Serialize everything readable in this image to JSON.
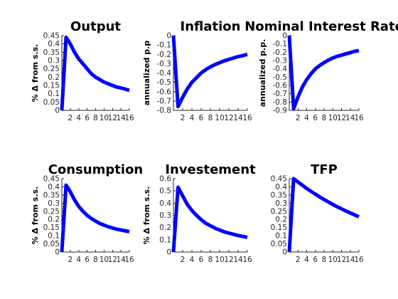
{
  "chart_data": [
    {
      "type": "line",
      "title": "Output",
      "ylabel": "% Δ from s.s.",
      "xlim": [
        0,
        16
      ],
      "ylim": [
        0,
        0.45
      ],
      "xticks": [
        "2",
        "4",
        "6",
        "8",
        "10",
        "12",
        "14",
        "16"
      ],
      "yticks": [
        "0",
        "0.05",
        "0.1",
        "0.15",
        "0.2",
        "0.25",
        "0.3",
        "0.35",
        "0.4",
        "0.45"
      ],
      "series": [
        {
          "color": "#0000ff",
          "x": [
            0,
            1,
            2,
            3,
            4,
            5,
            6,
            7,
            8,
            9,
            10,
            11,
            12,
            13,
            14,
            15,
            16
          ],
          "values": [
            0,
            0.44,
            0.4,
            0.35,
            0.31,
            0.28,
            0.25,
            0.22,
            0.2,
            0.185,
            0.17,
            0.16,
            0.15,
            0.14,
            0.135,
            0.128,
            0.12
          ]
        }
      ]
    },
    {
      "type": "line",
      "title": "Inflation",
      "ylabel": "annualized p.p",
      "xlim": [
        0,
        16
      ],
      "ylim": [
        -0.8,
        0
      ],
      "xticks": [
        "2",
        "4",
        "6",
        "8",
        "10",
        "12",
        "14",
        "16"
      ],
      "yticks": [
        "-0.8",
        "-0.7",
        "-0.6",
        "-0.5",
        "-0.4",
        "-0.3",
        "-0.2",
        "-0.1",
        "0"
      ],
      "series": [
        {
          "color": "#0000ff",
          "x": [
            0,
            1,
            2,
            3,
            4,
            5,
            6,
            7,
            8,
            9,
            10,
            11,
            12,
            13,
            14,
            15,
            16
          ],
          "values": [
            0,
            -0.76,
            -0.66,
            -0.57,
            -0.5,
            -0.45,
            -0.4,
            -0.365,
            -0.335,
            -0.31,
            -0.29,
            -0.27,
            -0.255,
            -0.24,
            -0.225,
            -0.215,
            -0.2
          ]
        }
      ]
    },
    {
      "type": "line",
      "title": "Nominal Interest Rate",
      "ylabel": "annualized p.p.",
      "xlim": [
        0,
        16
      ],
      "ylim": [
        -0.9,
        0
      ],
      "xticks": [
        "2",
        "4",
        "6",
        "8",
        "10",
        "12",
        "14",
        "16"
      ],
      "yticks": [
        "-0.9",
        "-0.8",
        "-0.7",
        "-0.6",
        "-0.5",
        "-0.4",
        "-0.3",
        "-0.2",
        "-0.1",
        "0"
      ],
      "series": [
        {
          "color": "#0000ff",
          "x": [
            0,
            1,
            2,
            3,
            4,
            5,
            6,
            7,
            8,
            9,
            10,
            11,
            12,
            13,
            14,
            15,
            16
          ],
          "values": [
            0,
            -0.88,
            -0.74,
            -0.62,
            -0.53,
            -0.46,
            -0.4,
            -0.36,
            -0.325,
            -0.295,
            -0.27,
            -0.25,
            -0.235,
            -0.22,
            -0.205,
            -0.19,
            -0.18
          ]
        }
      ]
    },
    {
      "type": "line",
      "title": "Consumption",
      "ylabel": "% Δ from s.s.",
      "xlim": [
        0,
        16
      ],
      "ylim": [
        0,
        0.45
      ],
      "xticks": [
        "2",
        "4",
        "6",
        "8",
        "10",
        "12",
        "14",
        "16"
      ],
      "yticks": [
        "0",
        "0.05",
        "0.1",
        "0.15",
        "0.2",
        "0.25",
        "0.3",
        "0.35",
        "0.4",
        "0.45"
      ],
      "series": [
        {
          "color": "#0000ff",
          "x": [
            0,
            1,
            2,
            3,
            4,
            5,
            6,
            7,
            8,
            9,
            10,
            11,
            12,
            13,
            14,
            15,
            16
          ],
          "values": [
            0,
            0.41,
            0.37,
            0.32,
            0.28,
            0.25,
            0.225,
            0.205,
            0.19,
            0.175,
            0.165,
            0.155,
            0.148,
            0.14,
            0.135,
            0.13,
            0.125
          ]
        }
      ]
    },
    {
      "type": "line",
      "title": "Investement",
      "ylabel": "% Δ from s.s.",
      "xlim": [
        0,
        16
      ],
      "ylim": [
        0,
        0.6
      ],
      "xticks": [
        "2",
        "4",
        "6",
        "8",
        "10",
        "12",
        "14",
        "16"
      ],
      "yticks": [
        "0",
        "0.1",
        "0.2",
        "0.3",
        "0.4",
        "0.5",
        "0.6"
      ],
      "series": [
        {
          "color": "#0000ff",
          "x": [
            0,
            1,
            2,
            3,
            4,
            5,
            6,
            7,
            8,
            9,
            10,
            11,
            12,
            13,
            14,
            15,
            16
          ],
          "values": [
            0,
            0.53,
            0.46,
            0.39,
            0.34,
            0.3,
            0.265,
            0.235,
            0.215,
            0.195,
            0.18,
            0.165,
            0.155,
            0.145,
            0.135,
            0.128,
            0.12
          ]
        }
      ]
    },
    {
      "type": "line",
      "title": "TFP",
      "ylabel": "",
      "xlim": [
        0,
        16
      ],
      "ylim": [
        0,
        0.45
      ],
      "xticks": [
        "2",
        "4",
        "6",
        "8",
        "10",
        "12",
        "14",
        "16"
      ],
      "yticks": [
        "0",
        "0.05",
        "0.1",
        "0.15",
        "0.2",
        "0.25",
        "0.3",
        "0.35",
        "0.4",
        "0.45"
      ],
      "series": [
        {
          "color": "#0000ff",
          "x": [
            0,
            1,
            2,
            3,
            4,
            5,
            6,
            7,
            8,
            9,
            10,
            11,
            12,
            13,
            14,
            15,
            16
          ],
          "values": [
            0,
            0.45,
            0.43,
            0.41,
            0.39,
            0.372,
            0.355,
            0.338,
            0.322,
            0.307,
            0.292,
            0.278,
            0.265,
            0.252,
            0.24,
            0.228,
            0.216
          ]
        }
      ]
    }
  ]
}
